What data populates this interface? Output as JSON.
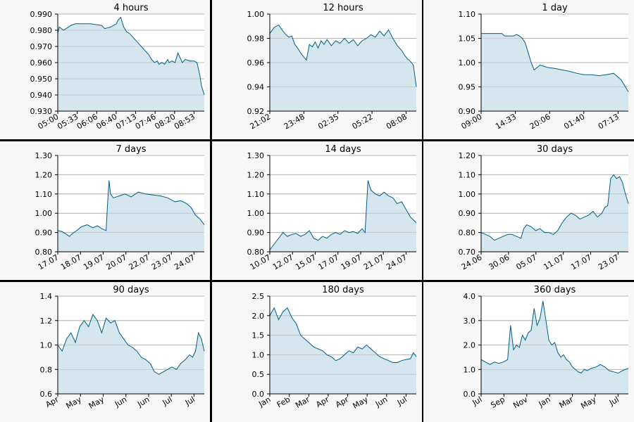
{
  "colors": {
    "line": "#005f85",
    "fill": "#d5e6ee",
    "plot_bg": "#ffffff",
    "panel_bg": "#f7f7f7",
    "grid": "#b4b4b4",
    "axis": "#000000"
  },
  "chart_data": [
    {
      "type": "area",
      "title": "4 hours",
      "ylim": [
        0.93,
        0.99
      ],
      "y_ticks": [
        "0.930",
        "0.940",
        "0.950",
        "0.960",
        "0.970",
        "0.980",
        "0.990"
      ],
      "x_ticks": [
        "05:00",
        "05:33",
        "06:06",
        "06:40",
        "07:13",
        "07:46",
        "08:20",
        "08:53"
      ],
      "grid": true,
      "x": [
        0,
        0.01,
        0.04,
        0.09,
        0.12,
        0.22,
        0.3,
        0.32,
        0.36,
        0.4,
        0.41,
        0.43,
        0.45,
        0.47,
        0.49,
        0.51,
        0.53,
        0.55,
        0.58,
        0.6,
        0.62,
        0.64,
        0.66,
        0.68,
        0.69,
        0.71,
        0.73,
        0.75,
        0.76,
        0.78,
        0.8,
        0.82,
        0.83,
        0.85,
        0.87,
        0.9,
        0.93,
        0.95,
        0.96,
        0.97,
        0.98,
        1.0
      ],
      "y": [
        0.978,
        0.982,
        0.98,
        0.983,
        0.984,
        0.984,
        0.983,
        0.981,
        0.982,
        0.984,
        0.986,
        0.988,
        0.982,
        0.979,
        0.978,
        0.976,
        0.974,
        0.972,
        0.969,
        0.967,
        0.965,
        0.962,
        0.96,
        0.961,
        0.959,
        0.96,
        0.959,
        0.962,
        0.96,
        0.961,
        0.96,
        0.966,
        0.964,
        0.96,
        0.962,
        0.961,
        0.961,
        0.96,
        0.956,
        0.952,
        0.946,
        0.94
      ]
    },
    {
      "type": "area",
      "title": "12 hours",
      "ylim": [
        0.92,
        1.0
      ],
      "y_ticks": [
        "0.92",
        "0.94",
        "0.96",
        "0.98",
        "1.00"
      ],
      "x_ticks": [
        "21:02",
        "23:48",
        "02:35",
        "05:22",
        "08:08"
      ],
      "grid": true,
      "x": [
        0,
        0.03,
        0.06,
        0.09,
        0.11,
        0.13,
        0.15,
        0.17,
        0.19,
        0.21,
        0.23,
        0.25,
        0.27,
        0.29,
        0.31,
        0.33,
        0.35,
        0.37,
        0.39,
        0.42,
        0.45,
        0.48,
        0.51,
        0.54,
        0.57,
        0.6,
        0.63,
        0.66,
        0.69,
        0.72,
        0.75,
        0.78,
        0.81,
        0.84,
        0.87,
        0.9,
        0.92,
        0.94,
        0.96,
        0.98,
        1.0
      ],
      "y": [
        0.984,
        0.989,
        0.991,
        0.986,
        0.983,
        0.981,
        0.982,
        0.975,
        0.972,
        0.968,
        0.965,
        0.962,
        0.975,
        0.973,
        0.977,
        0.972,
        0.978,
        0.975,
        0.979,
        0.974,
        0.978,
        0.976,
        0.98,
        0.976,
        0.979,
        0.974,
        0.978,
        0.98,
        0.983,
        0.981,
        0.986,
        0.982,
        0.987,
        0.98,
        0.974,
        0.97,
        0.966,
        0.963,
        0.961,
        0.958,
        0.94
      ]
    },
    {
      "type": "area",
      "title": "1 day",
      "ylim": [
        0.9,
        1.1
      ],
      "y_ticks": [
        "0.90",
        "0.95",
        "1.00",
        "1.05",
        "1.10"
      ],
      "x_ticks": [
        "09:00",
        "14:33",
        "20:06",
        "01:40",
        "07:13"
      ],
      "grid": true,
      "x": [
        0,
        0.05,
        0.1,
        0.14,
        0.16,
        0.18,
        0.2,
        0.22,
        0.24,
        0.26,
        0.28,
        0.3,
        0.32,
        0.34,
        0.36,
        0.4,
        0.45,
        0.5,
        0.55,
        0.6,
        0.65,
        0.7,
        0.75,
        0.8,
        0.85,
        0.9,
        0.95,
        1.0
      ],
      "y": [
        1.06,
        1.06,
        1.06,
        1.06,
        1.055,
        1.055,
        1.055,
        1.055,
        1.058,
        1.055,
        1.05,
        1.04,
        1.02,
        1.0,
        0.985,
        0.995,
        0.99,
        0.988,
        0.985,
        0.982,
        0.978,
        0.975,
        0.975,
        0.973,
        0.975,
        0.978,
        0.965,
        0.94
      ]
    },
    {
      "type": "area",
      "title": "7 days",
      "ylim": [
        0.8,
        1.3
      ],
      "y_ticks": [
        "0.80",
        "0.90",
        "1.00",
        "1.10",
        "1.20",
        "1.30"
      ],
      "x_ticks": [
        "17.07",
        "18.07",
        "19.07",
        "20.07",
        "22.07",
        "23.07",
        "24.07"
      ],
      "grid": true,
      "x": [
        0,
        0.03,
        0.06,
        0.08,
        0.1,
        0.13,
        0.16,
        0.2,
        0.24,
        0.27,
        0.3,
        0.33,
        0.34,
        0.35,
        0.36,
        0.38,
        0.42,
        0.46,
        0.5,
        0.55,
        0.6,
        0.65,
        0.7,
        0.75,
        0.8,
        0.84,
        0.88,
        0.91,
        0.94,
        0.97,
        1.0
      ],
      "y": [
        0.91,
        0.905,
        0.89,
        0.88,
        0.895,
        0.91,
        0.93,
        0.94,
        0.925,
        0.935,
        0.92,
        0.91,
        1.05,
        1.17,
        1.1,
        1.08,
        1.09,
        1.1,
        1.085,
        1.11,
        1.1,
        1.095,
        1.09,
        1.08,
        1.06,
        1.065,
        1.05,
        1.03,
        0.99,
        0.97,
        0.94
      ]
    },
    {
      "type": "area",
      "title": "14 days",
      "ylim": [
        0.8,
        1.3
      ],
      "y_ticks": [
        "0.80",
        "0.90",
        "1.00",
        "1.10",
        "1.20",
        "1.30"
      ],
      "x_ticks": [
        "10.07",
        "12.07",
        "15.07",
        "17.07",
        "19.07",
        "21.07",
        "24.07"
      ],
      "grid": true,
      "x": [
        0,
        0.03,
        0.06,
        0.09,
        0.12,
        0.15,
        0.18,
        0.21,
        0.24,
        0.27,
        0.3,
        0.33,
        0.36,
        0.39,
        0.42,
        0.45,
        0.48,
        0.51,
        0.54,
        0.57,
        0.6,
        0.63,
        0.65,
        0.67,
        0.69,
        0.72,
        0.75,
        0.78,
        0.81,
        0.84,
        0.87,
        0.9,
        0.93,
        0.96,
        1.0
      ],
      "y": [
        0.81,
        0.84,
        0.87,
        0.9,
        0.88,
        0.89,
        0.895,
        0.88,
        0.89,
        0.91,
        0.87,
        0.86,
        0.88,
        0.87,
        0.89,
        0.9,
        0.89,
        0.91,
        0.9,
        0.905,
        0.895,
        0.92,
        0.9,
        1.17,
        1.12,
        1.1,
        1.09,
        1.11,
        1.09,
        1.08,
        1.05,
        1.06,
        1.02,
        0.98,
        0.95
      ]
    },
    {
      "type": "area",
      "title": "30 days",
      "ylim": [
        0.7,
        1.2
      ],
      "y_ticks": [
        "0.70",
        "0.80",
        "0.90",
        "1.00",
        "1.10",
        "1.20"
      ],
      "x_ticks": [
        "24.06",
        "30.06",
        "05.07",
        "11.07",
        "17.07",
        "23.07"
      ],
      "grid": true,
      "x": [
        0,
        0.03,
        0.06,
        0.09,
        0.12,
        0.15,
        0.18,
        0.21,
        0.24,
        0.27,
        0.29,
        0.31,
        0.34,
        0.37,
        0.4,
        0.43,
        0.46,
        0.49,
        0.52,
        0.55,
        0.58,
        0.61,
        0.64,
        0.67,
        0.7,
        0.73,
        0.76,
        0.79,
        0.82,
        0.84,
        0.86,
        0.88,
        0.9,
        0.92,
        0.94,
        0.96,
        0.98,
        1.0
      ],
      "y": [
        0.8,
        0.79,
        0.78,
        0.76,
        0.77,
        0.78,
        0.79,
        0.79,
        0.78,
        0.77,
        0.82,
        0.84,
        0.83,
        0.81,
        0.82,
        0.8,
        0.8,
        0.79,
        0.81,
        0.85,
        0.88,
        0.9,
        0.89,
        0.87,
        0.88,
        0.89,
        0.91,
        0.88,
        0.9,
        0.93,
        0.94,
        1.08,
        1.1,
        1.08,
        1.09,
        1.06,
        1.0,
        0.95
      ]
    },
    {
      "type": "area",
      "title": "90 days",
      "ylim": [
        0.6,
        1.4
      ],
      "y_ticks": [
        "0.6",
        "0.8",
        "1.0",
        "1.2",
        "1.4"
      ],
      "x_ticks": [
        "Apr",
        "May",
        "May",
        "Jun",
        "Jun",
        "Jul",
        "Jul"
      ],
      "grid": true,
      "x": [
        0,
        0.03,
        0.06,
        0.09,
        0.12,
        0.15,
        0.18,
        0.21,
        0.24,
        0.27,
        0.3,
        0.33,
        0.36,
        0.39,
        0.42,
        0.45,
        0.48,
        0.51,
        0.54,
        0.57,
        0.6,
        0.63,
        0.66,
        0.69,
        0.72,
        0.75,
        0.78,
        0.81,
        0.84,
        0.87,
        0.9,
        0.92,
        0.94,
        0.96,
        0.98,
        1.0
      ],
      "y": [
        1.0,
        0.95,
        1.05,
        1.1,
        1.02,
        1.15,
        1.2,
        1.15,
        1.25,
        1.2,
        1.1,
        1.22,
        1.18,
        1.2,
        1.1,
        1.05,
        1.0,
        0.98,
        0.95,
        0.9,
        0.88,
        0.85,
        0.78,
        0.76,
        0.78,
        0.8,
        0.82,
        0.8,
        0.85,
        0.88,
        0.92,
        0.9,
        0.95,
        1.1,
        1.05,
        0.95
      ]
    },
    {
      "type": "area",
      "title": "180 days",
      "ylim": [
        0.0,
        2.5
      ],
      "y_ticks": [
        "0.0",
        "0.5",
        "1.0",
        "1.5",
        "2.0",
        "2.5"
      ],
      "x_ticks": [
        "Jan",
        "Feb",
        "Mar",
        "Apr",
        "Apr",
        "May",
        "Jun",
        "Jul"
      ],
      "grid": true,
      "x": [
        0,
        0.03,
        0.06,
        0.09,
        0.12,
        0.15,
        0.18,
        0.21,
        0.24,
        0.27,
        0.3,
        0.33,
        0.36,
        0.39,
        0.42,
        0.45,
        0.48,
        0.51,
        0.54,
        0.57,
        0.6,
        0.63,
        0.66,
        0.69,
        0.72,
        0.75,
        0.78,
        0.81,
        0.84,
        0.87,
        0.9,
        0.93,
        0.96,
        0.98,
        1.0
      ],
      "y": [
        2.0,
        2.2,
        1.9,
        2.1,
        2.2,
        1.95,
        1.8,
        1.5,
        1.4,
        1.3,
        1.2,
        1.15,
        1.1,
        1.0,
        0.95,
        0.85,
        0.9,
        1.0,
        1.1,
        1.05,
        1.2,
        1.15,
        1.25,
        1.15,
        1.05,
        0.95,
        0.9,
        0.85,
        0.8,
        0.8,
        0.85,
        0.88,
        0.9,
        1.05,
        0.95
      ]
    },
    {
      "type": "area",
      "title": "360 days",
      "ylim": [
        0.0,
        4.0
      ],
      "y_ticks": [
        "0.0",
        "1.0",
        "2.0",
        "3.0",
        "4.0"
      ],
      "x_ticks": [
        "Jul",
        "Sep",
        "Nov",
        "Jan",
        "Mar",
        "May",
        "Jul"
      ],
      "grid": true,
      "x": [
        0,
        0.03,
        0.06,
        0.09,
        0.12,
        0.15,
        0.18,
        0.2,
        0.22,
        0.24,
        0.26,
        0.28,
        0.3,
        0.32,
        0.34,
        0.36,
        0.38,
        0.4,
        0.42,
        0.44,
        0.46,
        0.48,
        0.5,
        0.52,
        0.54,
        0.56,
        0.58,
        0.6,
        0.62,
        0.64,
        0.66,
        0.68,
        0.7,
        0.72,
        0.75,
        0.78,
        0.81,
        0.84,
        0.87,
        0.9,
        0.93,
        0.96,
        1.0
      ],
      "y": [
        1.4,
        1.3,
        1.2,
        1.3,
        1.25,
        1.3,
        1.4,
        2.8,
        1.8,
        2.0,
        1.9,
        2.4,
        2.2,
        2.5,
        2.6,
        3.5,
        2.8,
        3.1,
        3.8,
        3.0,
        2.2,
        2.0,
        2.1,
        1.7,
        1.5,
        1.6,
        1.4,
        1.3,
        1.1,
        1.0,
        0.9,
        0.85,
        1.0,
        0.95,
        1.05,
        1.1,
        1.2,
        1.1,
        0.95,
        0.9,
        0.85,
        0.95,
        1.05
      ]
    }
  ]
}
